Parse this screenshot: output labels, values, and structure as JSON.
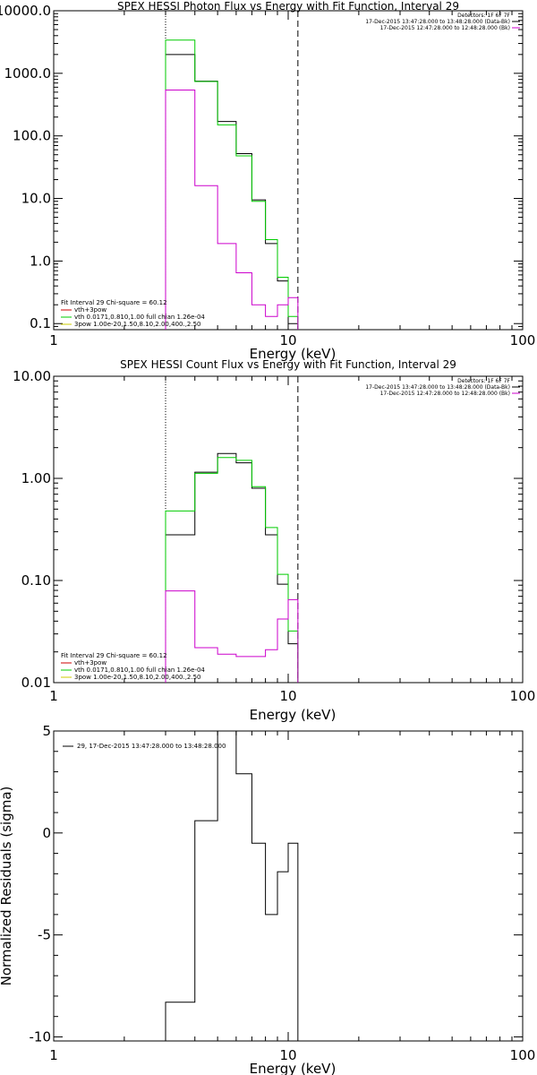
{
  "chart_data": [
    {
      "type": "line",
      "step": true,
      "title": "SPEX HESSI Photon Flux vs Energy with Fit Function, Interval 29",
      "xlabel": "Energy (keV)",
      "ylabel": "",
      "xscale": "log",
      "yscale": "log",
      "xlim": [
        1,
        100
      ],
      "ylim": [
        0.08,
        10000
      ],
      "x_ticks": [
        1,
        10,
        100
      ],
      "x_tick_labels": [
        "1",
        "10",
        "100"
      ],
      "y_ticks": [
        0.1,
        1,
        10,
        100,
        1000,
        10000
      ],
      "y_tick_labels": [
        "0.1",
        "1.0",
        "10.0",
        "100.0",
        "1000.0",
        "10000.0"
      ],
      "fit_range_start": 3.0,
      "fit_range_end": 11.0,
      "header_lines": [
        "Detectors: 1F 6F 7F",
        "17-Dec-2015 13:47:28.000 to 13:48:28.000 (Data-Bk)",
        "17-Dec-2015 12:47:28.000 to 12:48:28.000 (Bk)"
      ],
      "header_colors": [
        "#000000",
        "#000000",
        "#cc00cc"
      ],
      "legend_lines": [
        "Fit Interval 29   Chi-square = 60.12",
        "vth+3pow",
        "vth 0.0171,0.810,1.00   full chian 1.26e-04",
        "3pow 1.00e-20,1.50,8.10,2.00,400.,2.50"
      ],
      "legend_colors": [
        "#000000",
        "#cc0000",
        "#00cc00",
        "#cccc00"
      ],
      "legend_placement": "bottom-left",
      "edges": [
        3.0,
        4.0,
        5.0,
        6.0,
        7.0,
        8.0,
        9.0,
        10.0,
        11.0
      ],
      "series": [
        {
          "color": "#000000",
          "values": [
            2000,
            750,
            170,
            52,
            9.5,
            1.9,
            0.48,
            0.1
          ]
        },
        {
          "color": "#00cc00",
          "values": [
            3400,
            740,
            150,
            48,
            9.0,
            2.2,
            0.55,
            0.13
          ]
        },
        {
          "color": "#cc00cc",
          "values": [
            540,
            16,
            1.9,
            0.65,
            0.2,
            0.13,
            0.2,
            0.26
          ]
        }
      ]
    },
    {
      "type": "line",
      "step": true,
      "title": "SPEX HESSI Count Flux vs Energy with Fit Function, Interval 29",
      "xlabel": "Energy (keV)",
      "ylabel": "",
      "xscale": "log",
      "yscale": "log",
      "xlim": [
        1,
        100
      ],
      "ylim": [
        0.01,
        10
      ],
      "x_ticks": [
        1,
        10,
        100
      ],
      "x_tick_labels": [
        "1",
        "10",
        "100"
      ],
      "y_ticks": [
        0.01,
        0.1,
        1,
        10
      ],
      "y_tick_labels": [
        "0.01",
        "0.10",
        "1.00",
        "10.00"
      ],
      "fit_range_start": 3.0,
      "fit_range_end": 11.0,
      "header_lines": [
        "Detectors: 1F 6F 7F",
        "17-Dec-2015 13:47:28.000 to 13:48:28.000 (Data-Bk)",
        "17-Dec-2015 12:47:28.000 to 12:48:28.000 (Bk)"
      ],
      "header_colors": [
        "#000000",
        "#000000",
        "#cc00cc"
      ],
      "legend_lines": [
        "Fit Interval 29   Chi-square = 60.12",
        "vth+3pow",
        "vth 0.0171,0.810,1.00   full chian 1.26e-04",
        "3pow 1.00e-20,1.50,8.10,2.00,400.,2.50"
      ],
      "legend_colors": [
        "#000000",
        "#cc0000",
        "#00cc00",
        "#cccc00"
      ],
      "legend_placement": "bottom-left",
      "edges": [
        3.0,
        4.0,
        5.0,
        6.0,
        7.0,
        8.0,
        9.0,
        10.0,
        11.0
      ],
      "series": [
        {
          "color": "#000000",
          "values": [
            0.28,
            1.15,
            1.75,
            1.42,
            0.8,
            0.28,
            0.092,
            0.024
          ]
        },
        {
          "color": "#00cc00",
          "values": [
            0.48,
            1.12,
            1.6,
            1.5,
            0.83,
            0.33,
            0.115,
            0.032
          ]
        },
        {
          "color": "#cc00cc",
          "values": [
            0.079,
            0.022,
            0.019,
            0.018,
            0.018,
            0.021,
            0.042,
            0.065
          ]
        }
      ]
    },
    {
      "type": "line",
      "step": true,
      "title": "",
      "xlabel": "Energy (keV)",
      "ylabel": "Normalized Residuals (sigma)",
      "xscale": "log",
      "yscale": "linear",
      "xlim": [
        1,
        100
      ],
      "ylim": [
        -10.2,
        5
      ],
      "x_ticks": [
        1,
        10,
        100
      ],
      "x_tick_labels": [
        "1",
        "10",
        "100"
      ],
      "y_ticks": [
        -10,
        -5,
        0,
        5
      ],
      "y_tick_labels": [
        "-10",
        "-5",
        "0",
        "5"
      ],
      "legend_lines": [
        "29, 17-Dec-2015 13:47:28.000 to 13:48:28.000"
      ],
      "legend_placement": "top-left",
      "edges": [
        3.0,
        4.0,
        5.0,
        6.0,
        7.0,
        8.0,
        9.0,
        10.0,
        11.0
      ],
      "series": [
        {
          "color": "#000000",
          "values": [
            -8.3,
            0.6,
            5.5,
            2.9,
            -0.5,
            -4.0,
            -1.9,
            -0.5
          ]
        }
      ]
    }
  ]
}
